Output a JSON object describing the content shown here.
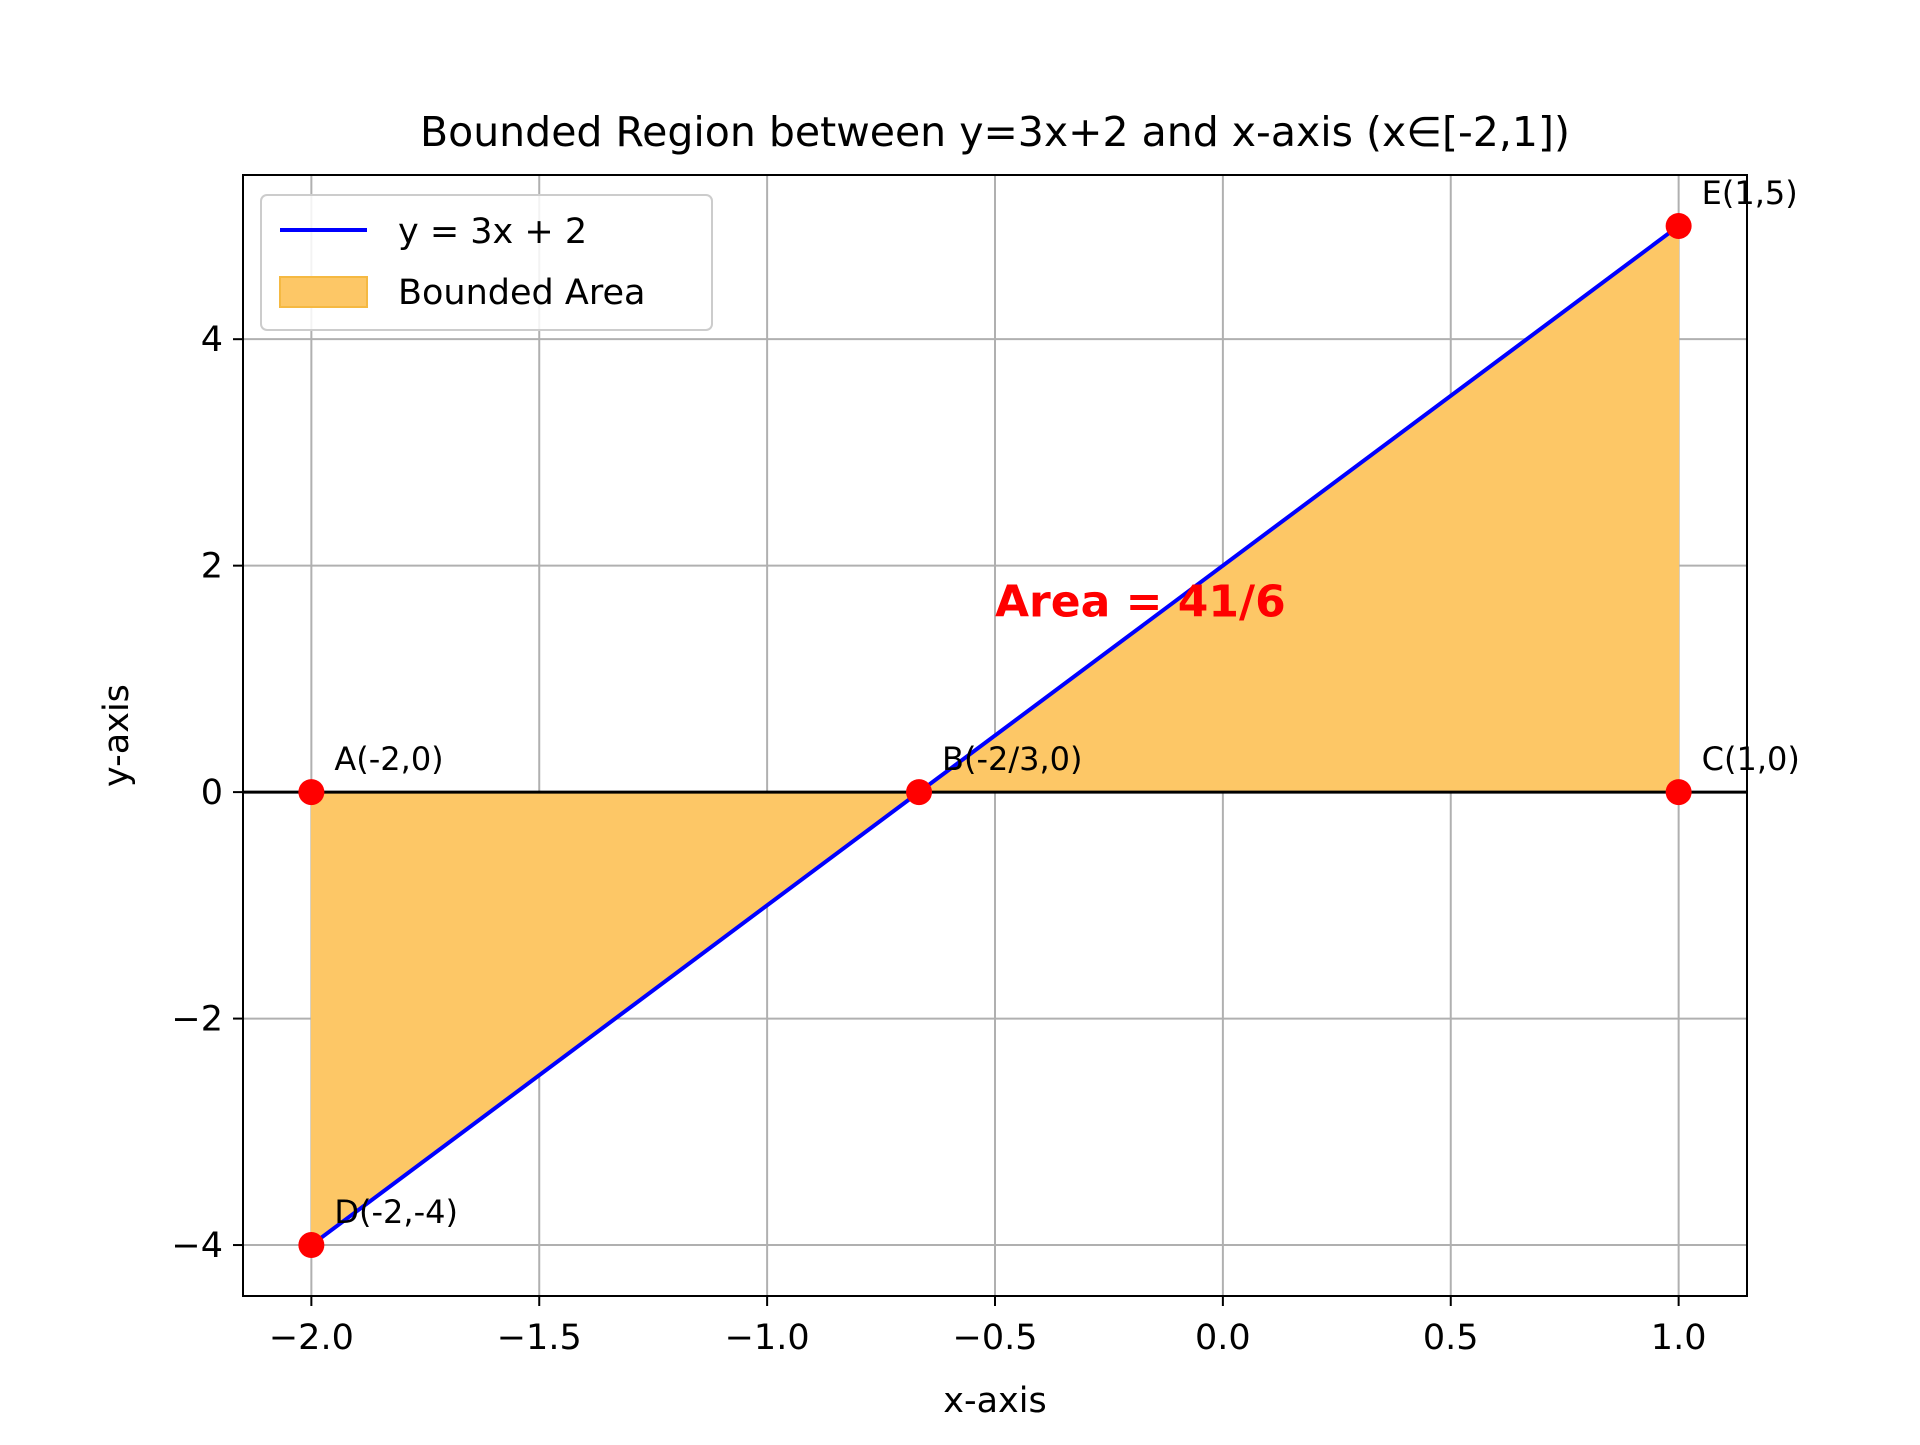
{
  "chart_data": {
    "type": "line",
    "title": "Bounded Region between y=3x+2 and x-axis (x∈[-2,1])",
    "xlabel": "x-axis",
    "ylabel": "y-axis",
    "xlim": [
      -2.15,
      1.15
    ],
    "ylim": [
      -4.45,
      5.45
    ],
    "grid": true,
    "legend_position": "upper-left",
    "xticks": [
      -2.0,
      -1.5,
      -1.0,
      -0.5,
      0.0,
      0.5,
      1.0
    ],
    "xtick_labels": [
      "−2.0",
      "−1.5",
      "−1.0",
      "−0.5",
      "0.0",
      "0.5",
      "1.0"
    ],
    "yticks": [
      -4,
      -2,
      0,
      2,
      4
    ],
    "ytick_labels": [
      "−4",
      "−2",
      "0",
      "2",
      "4"
    ],
    "series": [
      {
        "name": "y = 3x + 2",
        "type": "line",
        "x": [
          -2,
          1
        ],
        "y": [
          -4,
          5
        ],
        "color": "#0000ff"
      }
    ],
    "fill": {
      "name": "Bounded Area",
      "polygon_x": [
        -2,
        1,
        1,
        -2
      ],
      "polygon_y": [
        -4,
        5,
        0,
        0
      ],
      "color": "#fdc766"
    },
    "baseline": {
      "y": 0,
      "color": "#000000"
    },
    "points": [
      {
        "label": "A(-2,0)",
        "x": -2,
        "y": 0
      },
      {
        "label": "B(-2/3,0)",
        "x": -0.6667,
        "y": 0
      },
      {
        "label": "C(1,0)",
        "x": 1,
        "y": 0
      },
      {
        "label": "D(-2,-4)",
        "x": -2,
        "y": -4
      },
      {
        "label": "E(1,5)",
        "x": 1,
        "y": 5
      }
    ],
    "point_color": "#ff0000",
    "annotation": {
      "text": "Area = 41/6",
      "x": -0.5,
      "y": 1.55,
      "color": "#ff0000"
    }
  }
}
